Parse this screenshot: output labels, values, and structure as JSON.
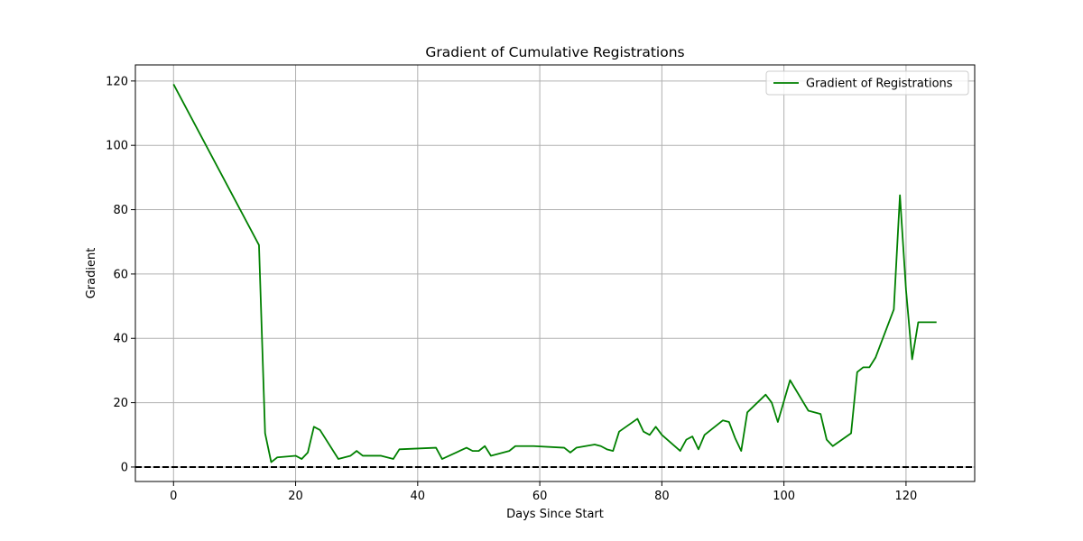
{
  "chart_data": {
    "type": "line",
    "title": "Gradient of Cumulative Registrations",
    "xlabel": "Days Since Start",
    "ylabel": "Gradient",
    "xlim": [
      -6.25,
      131.25
    ],
    "ylim": [
      -4.5,
      125
    ],
    "xticks": [
      0,
      20,
      40,
      60,
      80,
      100,
      120
    ],
    "yticks": [
      0,
      20,
      40,
      60,
      80,
      100,
      120
    ],
    "grid": true,
    "legend_position": "top-right",
    "reference_line": {
      "y": 0,
      "style": "dashed",
      "color": "#000000"
    },
    "series": [
      {
        "name": "Gradient of Registrations",
        "color": "#008000",
        "x": [
          0,
          14,
          15,
          16,
          17,
          20,
          21,
          22,
          23,
          24,
          27,
          29,
          30,
          31,
          34,
          36,
          37,
          43,
          44,
          48,
          49,
          50,
          51,
          52,
          55,
          56,
          59,
          64,
          65,
          66,
          69,
          70,
          71,
          72,
          73,
          76,
          77,
          78,
          79,
          80,
          83,
          84,
          85,
          86,
          87,
          90,
          91,
          92,
          93,
          94,
          97,
          98,
          99,
          101,
          104,
          106,
          107,
          108,
          111,
          112,
          113,
          114,
          115,
          118,
          119,
          120,
          121,
          122,
          125
        ],
        "y": [
          119,
          69,
          10.5,
          1.5,
          3,
          3.5,
          2.5,
          4.5,
          12.5,
          11.5,
          2.5,
          3.5,
          5,
          3.5,
          3.5,
          2.5,
          5.5,
          6,
          2.5,
          6,
          5,
          5,
          6.5,
          3.5,
          5,
          6.5,
          6.5,
          6,
          4.5,
          6,
          7,
          6.5,
          5.5,
          5,
          11,
          15,
          11,
          10,
          12.5,
          10,
          5,
          8.5,
          9.5,
          5.5,
          10,
          14.5,
          14,
          9,
          5,
          17,
          22.5,
          20,
          14,
          27,
          17.5,
          16.5,
          8.5,
          6.5,
          10.5,
          29.5,
          31,
          31,
          34,
          49,
          84.5,
          55,
          33.5,
          45,
          45
        ]
      }
    ]
  }
}
